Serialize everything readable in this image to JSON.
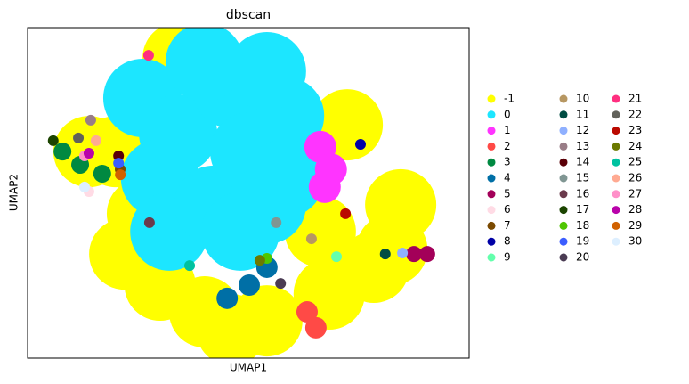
{
  "chart_data": {
    "type": "scatter",
    "title": "dbscan",
    "xlabel": "UMAP1",
    "ylabel": "UMAP2",
    "xlim": [
      0,
      100
    ],
    "ylim": [
      0,
      100
    ],
    "series": [
      {
        "name": "-1",
        "color": "#FFFF00",
        "x": [
          26.0,
          22.0,
          30.0,
          40.1,
          54.2,
          68.3,
          78.4,
          84.5,
          72.4,
          66.3,
          20.0,
          34.1,
          46.2,
          82.5,
          13.9
        ],
        "y": [
          43.7,
          31.5,
          22.1,
          14.0,
          11.3,
          19.4,
          27.5,
          46.4,
          70.6,
          38.3,
          62.5,
          90.8,
          8.6,
          32.9,
          62.5
        ]
      },
      {
        "name": "0",
        "color": "#1CE6FF",
        "x": [
          26.0,
          34.1,
          30.0,
          32.1,
          42.1,
          46.2,
          50.2,
          54.2,
          58.3,
          40.1,
          54.2,
          48.2,
          58.3
        ],
        "y": [
          78.7,
          67.9,
          54.4,
          38.3,
          46.4,
          81.4,
          62.5,
          46.4,
          73.3,
          89.5,
          86.8,
          38.3,
          54.4
        ]
      },
      {
        "name": "1",
        "color": "#FF34FF",
        "x": [
          66.3,
          68.7,
          67.3
        ],
        "y": [
          63.9,
          57.1,
          51.8
        ]
      },
      {
        "name": "2",
        "color": "#FF4A46",
        "x": [
          63.3,
          65.3
        ],
        "y": [
          14.0,
          9.2
        ]
      },
      {
        "name": "3",
        "color": "#008941",
        "x": [
          7.9,
          11.9,
          16.9
        ],
        "y": [
          62.5,
          58.5,
          55.8
        ]
      },
      {
        "name": "4",
        "color": "#006FA6",
        "x": [
          50.2,
          45.2,
          54.2
        ],
        "y": [
          22.1,
          18.1,
          27.5
        ]
      },
      {
        "name": "5",
        "color": "#A30059",
        "x": [
          90.5,
          87.5
        ],
        "y": [
          31.5,
          31.5
        ]
      },
      {
        "name": "6",
        "color": "#FFDBE5",
        "x": [
          13.9
        ],
        "y": [
          50.4
        ]
      },
      {
        "name": "7",
        "color": "#7A4900",
        "x": [
          20.97
        ],
        "y": [
          57.1
        ]
      },
      {
        "name": "8",
        "color": "#0000A6",
        "x": [
          75.4
        ],
        "y": [
          64.7
        ]
      },
      {
        "name": "9",
        "color": "#63FFAC",
        "x": [
          69.96
        ],
        "y": [
          30.7
        ]
      },
      {
        "name": "10",
        "color": "#B79762",
        "x": [
          64.3
        ],
        "y": [
          36.1
        ]
      },
      {
        "name": "11",
        "color": "#004D43",
        "x": [
          81.0
        ],
        "y": [
          31.5
        ]
      },
      {
        "name": "12",
        "color": "#8FB0FF",
        "x": [
          84.9
        ],
        "y": [
          31.8
        ]
      },
      {
        "name": "13",
        "color": "#997D87",
        "x": [
          14.3
        ],
        "y": [
          72.0
        ]
      },
      {
        "name": "14",
        "color": "#5A0007",
        "x": [
          20.6
        ],
        "y": [
          61.2
        ]
      },
      {
        "name": "15",
        "color": "#809693",
        "x": [
          56.3
        ],
        "y": [
          41.0
        ]
      },
      {
        "name": "16",
        "color": "#6A3A4C",
        "x": [
          27.6
        ],
        "y": [
          41.0
        ]
      },
      {
        "name": "17",
        "color": "#1B4400",
        "x": [
          5.8
        ],
        "y": [
          65.8
        ]
      },
      {
        "name": "18",
        "color": "#4FC601",
        "x": [
          54.2
        ],
        "y": [
          30.2
        ]
      },
      {
        "name": "19",
        "color": "#3B5DFF",
        "x": [
          20.6
        ],
        "y": [
          59.0
        ]
      },
      {
        "name": "20",
        "color": "#4A3B53",
        "x": [
          57.3
        ],
        "y": [
          22.6
        ]
      },
      {
        "name": "21",
        "color": "#FF2F80",
        "x": [
          27.4
        ],
        "y": [
          91.6
        ]
      },
      {
        "name": "22",
        "color": "#61615A",
        "x": [
          11.5
        ],
        "y": [
          66.6
        ]
      },
      {
        "name": "23",
        "color": "#BA0900",
        "x": [
          72.0
        ],
        "y": [
          43.7
        ]
      },
      {
        "name": "24",
        "color": "#6B7900",
        "x": [
          52.6
        ],
        "y": [
          29.6
        ]
      },
      {
        "name": "25",
        "color": "#00C2A0",
        "x": [
          36.7
        ],
        "y": [
          28.0
        ]
      },
      {
        "name": "26",
        "color": "#FFAA92",
        "x": [
          15.5
        ],
        "y": [
          65.8
        ]
      },
      {
        "name": "27",
        "color": "#FF90C9",
        "x": [
          12.9
        ],
        "y": [
          61.2
        ]
      },
      {
        "name": "28",
        "color": "#B903AA",
        "x": [
          13.9
        ],
        "y": [
          62.0
        ]
      },
      {
        "name": "29",
        "color": "#D16100",
        "x": [
          21.0
        ],
        "y": [
          55.5
        ]
      },
      {
        "name": "30",
        "color": "#DDEFFF",
        "x": [
          12.9
        ],
        "y": [
          51.8
        ]
      }
    ]
  }
}
